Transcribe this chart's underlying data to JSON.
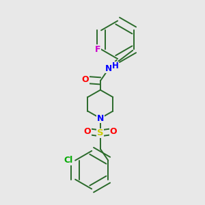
{
  "background_color": "#e8e8e8",
  "bond_color": "#2a6a2a",
  "atom_colors": {
    "F": "#cc00cc",
    "O": "#ff0000",
    "N": "#0000ff",
    "H": "#0000ff",
    "S": "#cccc00",
    "Cl": "#00aa00",
    "C": "#000000"
  },
  "bond_lw": 1.4,
  "fig_size": [
    3.0,
    3.0
  ],
  "dpi": 100,
  "xlim": [
    0.05,
    0.95
  ],
  "ylim": [
    0.03,
    0.97
  ]
}
